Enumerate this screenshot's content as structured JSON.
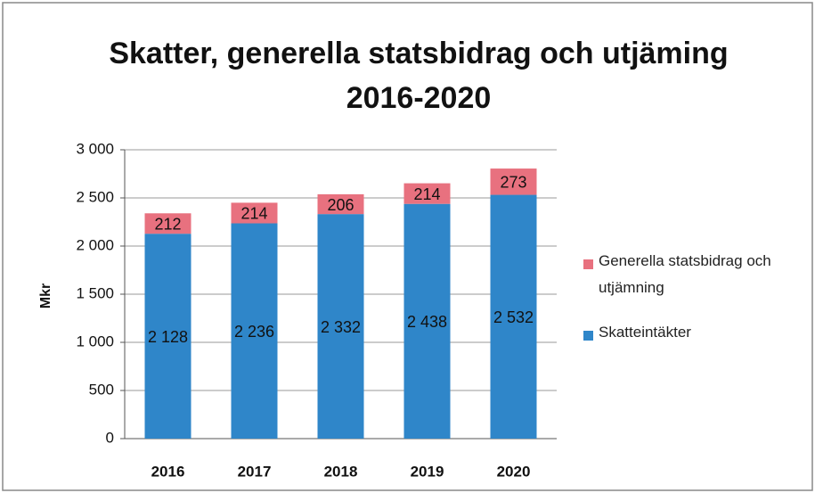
{
  "chart_data": {
    "type": "stacked_bar",
    "title": [
      "Skatter, generella statsbidrag och utjäming",
      "2016-2020"
    ],
    "ylabel": "Mkr",
    "categories": [
      "2016",
      "2017",
      "2018",
      "2019",
      "2020"
    ],
    "series": [
      {
        "name": "Skatteintäkter",
        "color": "#2f86c9",
        "values": [
          2128,
          2236,
          2332,
          2438,
          2532
        ],
        "value_labels": [
          "2 128",
          "2 236",
          "2 332",
          "2 438",
          "2 532"
        ]
      },
      {
        "name": "Generella statsbidrag och utjämning",
        "color": "#e8717f",
        "values": [
          212,
          214,
          206,
          214,
          273
        ]
      }
    ],
    "ylim": [
      0,
      3000
    ],
    "yticks": [
      0,
      500,
      {
        "value": 1000,
        "label": "1 000"
      },
      {
        "value": 1500,
        "label": "1 500"
      },
      {
        "value": 2000,
        "label": "2 000"
      },
      {
        "value": 2500,
        "label": "2 500"
      },
      {
        "value": 3000,
        "label": "3 000"
      }
    ],
    "grid": true
  }
}
